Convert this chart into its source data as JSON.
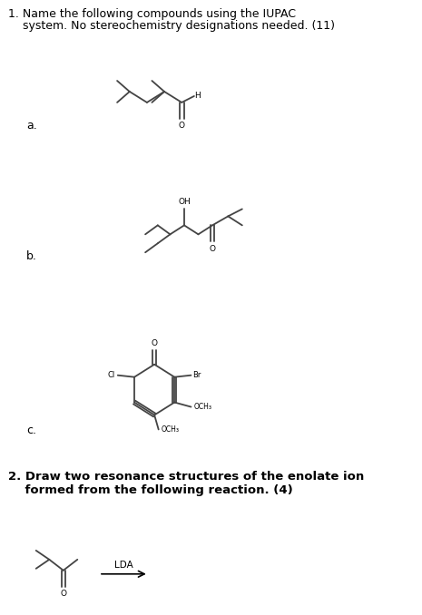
{
  "bg_color": "#ffffff",
  "text_color": "#000000",
  "line_color": "#444444",
  "title1": "1. Name the following compounds using the IUPAC",
  "title1b": "    system. No stereochemistry designations needed. (11)",
  "title2": "2. Draw two resonance structures of the enolate ion",
  "title2b": "    formed from the following reaction. (4)",
  "label_a": "a.",
  "label_b": "b.",
  "label_c": "c.",
  "lda_label": "LDA"
}
